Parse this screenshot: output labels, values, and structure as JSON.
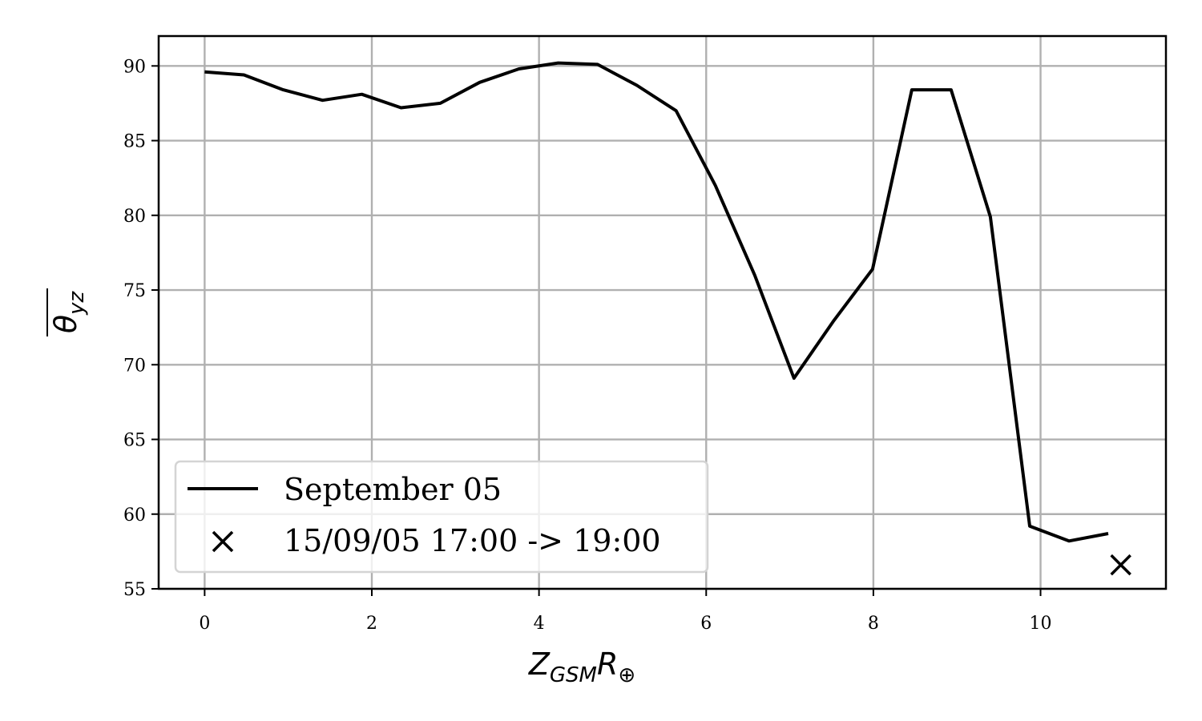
{
  "chart_data": {
    "type": "line",
    "title": "",
    "xlabel": {
      "main": "Z",
      "sub": "GSM",
      "main2": "R",
      "sub2": "⊕"
    },
    "ylabel": {
      "main": "θ",
      "sub": "yz"
    },
    "xlim": [
      -0.55,
      11.5
    ],
    "ylim": [
      55,
      92
    ],
    "xticks": [
      0,
      2,
      4,
      6,
      8,
      10
    ],
    "yticks": [
      55,
      60,
      65,
      70,
      75,
      80,
      85,
      90
    ],
    "grid": true,
    "legend_position": "lower-left",
    "series": [
      {
        "name": "September 05",
        "kind": "line",
        "color": "#000000",
        "x": [
          0.0,
          0.47,
          0.94,
          1.41,
          1.88,
          2.35,
          2.82,
          3.29,
          3.76,
          4.23,
          4.7,
          5.17,
          5.64,
          6.11,
          6.58,
          7.05,
          7.52,
          7.99,
          8.46,
          8.93,
          9.4,
          9.87,
          10.34,
          10.81
        ],
        "y": [
          89.6,
          89.4,
          88.4,
          87.7,
          88.1,
          87.2,
          87.5,
          88.9,
          89.8,
          90.2,
          90.1,
          88.7,
          87.0,
          82.0,
          76.0,
          69.1,
          72.9,
          76.4,
          88.4,
          88.4,
          79.9,
          59.2,
          58.2,
          58.7
        ]
      },
      {
        "name": "15/09/05 17:00 -> 19:00",
        "kind": "marker",
        "marker": "x",
        "color": "#000000",
        "x": [
          10.96
        ],
        "y": [
          56.6
        ]
      }
    ]
  }
}
